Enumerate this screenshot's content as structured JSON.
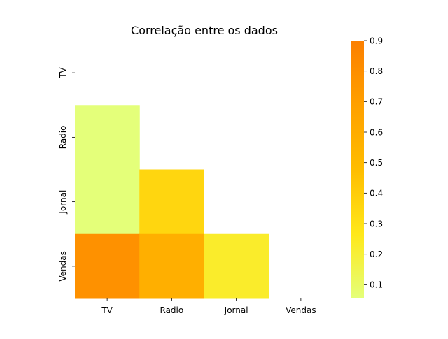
{
  "chart_data": {
    "type": "heatmap",
    "title": "Correlação entre os dados",
    "x_categories": [
      "TV",
      "Radio",
      "Jornal",
      "Vendas"
    ],
    "y_categories": [
      "TV",
      "Radio",
      "Jornal",
      "Vendas"
    ],
    "mask": "upper-triangle-including-diagonal",
    "cells": [
      {
        "row": "Radio",
        "col": "TV",
        "value": 0.055
      },
      {
        "row": "Jornal",
        "col": "TV",
        "value": 0.057
      },
      {
        "row": "Jornal",
        "col": "Radio",
        "value": 0.354
      },
      {
        "row": "Vendas",
        "col": "TV",
        "value": 0.782
      },
      {
        "row": "Vendas",
        "col": "Radio",
        "value": 0.576
      },
      {
        "row": "Vendas",
        "col": "Jornal",
        "value": 0.228
      }
    ],
    "colorbar": {
      "range": [
        0.055,
        0.9
      ],
      "ticks": [
        "0.1",
        "0.2",
        "0.3",
        "0.4",
        "0.5",
        "0.6",
        "0.7",
        "0.8",
        "0.9"
      ],
      "colormap": "Wistia",
      "colors": [
        "#e4ff7a",
        "#ffe81a",
        "#ffbd00",
        "#ffa000",
        "#fc7f00"
      ]
    },
    "xlabel": "",
    "ylabel": "",
    "grid": false
  }
}
